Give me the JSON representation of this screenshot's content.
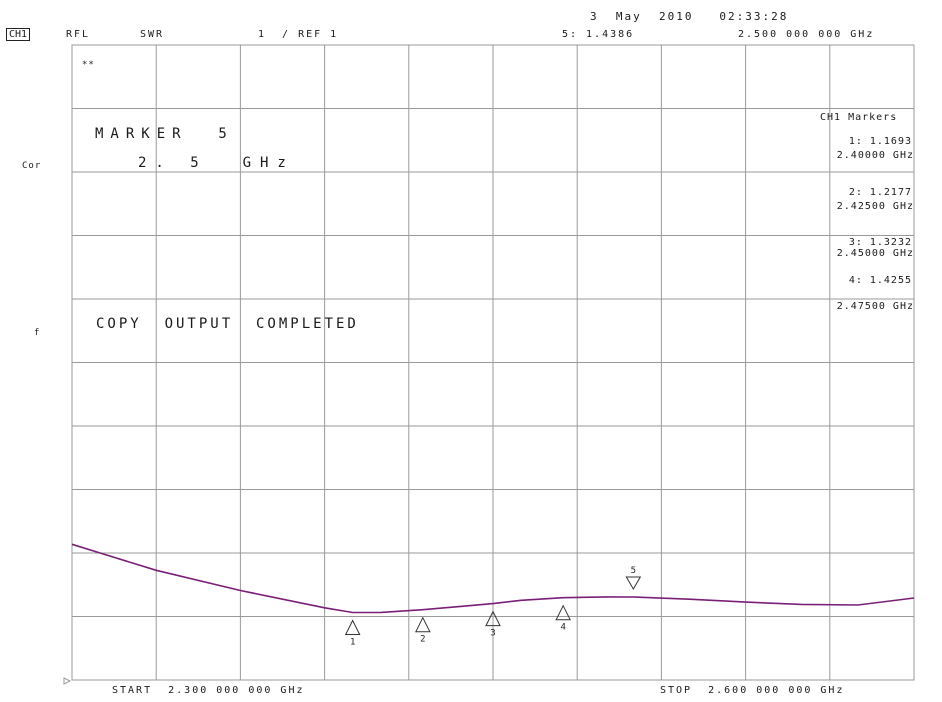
{
  "header": {
    "datetime": "3  May  2010   02:33:28",
    "channel": "CH1",
    "format": "RFL",
    "measurement": "SWR",
    "scale_ref": "1  / REF 1",
    "active_marker_readout": "5: 1.4386",
    "active_marker_freq": "2.500 000 000 GHz"
  },
  "left_annotations": {
    "cor": "Cor",
    "f": "f"
  },
  "overlay": {
    "star_symbol": "**",
    "marker_title": "MARKER  5",
    "marker_freq": "2. 5  GHz",
    "copy_status": "COPY  OUTPUT  COMPLETED"
  },
  "marker_table": {
    "title": "CH1 Markers",
    "entries": [
      {
        "value": "1: 1.1693",
        "freq": "2.40000 GHz"
      },
      {
        "value": "2: 1.2177",
        "freq": "2.42500 GHz"
      },
      {
        "value": "3: 1.3232",
        "freq": "2.45000 GHz"
      },
      {
        "value": "4: 1.4255",
        "freq": "2.47500 GHz"
      }
    ]
  },
  "footer": {
    "start": "START  2.300 000 000 GHz",
    "stop": "STOP  2.600 000 000 GHz"
  },
  "colors": {
    "trace": "#7a1f78",
    "grid": "#9a9a9a",
    "text": "#1a1a1a"
  },
  "chart_data": {
    "type": "line",
    "x_unit": "GHz",
    "y_unit": "SWR",
    "xlim": [
      2.3,
      2.6
    ],
    "ylim": [
      0.0,
      11.0
    ],
    "grid": true,
    "divisions": {
      "x": 10,
      "y": 10
    },
    "series": [
      {
        "x": [
          2.3,
          2.31,
          2.33,
          2.36,
          2.39,
          2.4,
          2.41,
          2.425,
          2.44,
          2.45,
          2.46,
          2.475,
          2.49,
          2.5,
          2.52,
          2.54,
          2.56,
          2.58,
          2.6
        ],
        "y": [
          2.35,
          2.2,
          1.9,
          1.55,
          1.25,
          1.1693,
          1.17,
          1.2177,
          1.28,
          1.3232,
          1.38,
          1.4255,
          1.44,
          1.4386,
          1.4,
          1.35,
          1.31,
          1.3,
          1.42
        ]
      }
    ],
    "markers": [
      {
        "id": "1",
        "x": 2.4,
        "y": 1.1693,
        "kind": "up"
      },
      {
        "id": "2",
        "x": 2.425,
        "y": 1.2177,
        "kind": "up"
      },
      {
        "id": "3",
        "x": 2.45,
        "y": 1.3232,
        "kind": "up"
      },
      {
        "id": "4",
        "x": 2.475,
        "y": 1.4255,
        "kind": "up"
      },
      {
        "id": "5",
        "x": 2.5,
        "y": 1.4386,
        "kind": "down"
      }
    ]
  }
}
